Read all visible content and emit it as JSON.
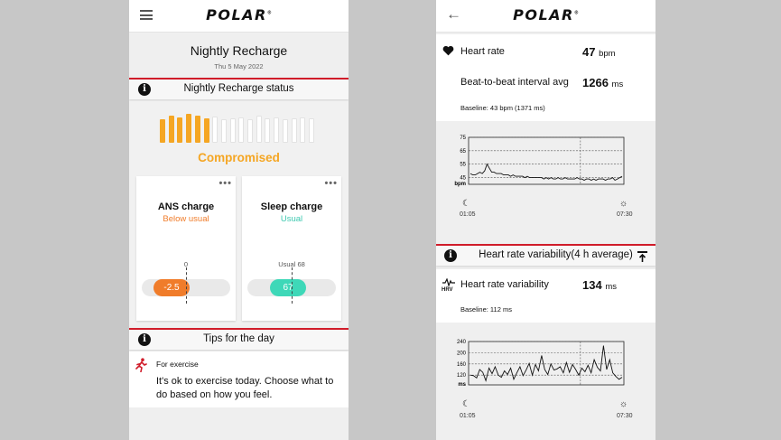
{
  "left": {
    "brand": "POLAR",
    "title": "Nightly Recharge",
    "date": "Thu 5 May 2022",
    "status_header": "Nightly Recharge status",
    "status_word": "Compromised",
    "status_level": 6,
    "status_total": 18,
    "ans": {
      "title": "ANS charge",
      "subtitle": "Below usual",
      "reference": "0",
      "value": "-2.5"
    },
    "sleep": {
      "title": "Sleep charge",
      "subtitle": "Usual",
      "reference": "Usual 68",
      "value": "67"
    },
    "tips_header": "Tips for the day",
    "tip_category": "For exercise",
    "tip_text": "It's ok to exercise today. Choose what to do based on how you feel."
  },
  "right": {
    "brand": "POLAR",
    "heart_rate": {
      "label": "Heart rate",
      "value": "47",
      "unit": "bpm"
    },
    "btb": {
      "label": "Beat-to-beat interval avg",
      "value": "1266",
      "unit": "ms"
    },
    "baseline_hr": "Baseline: 43 bpm (1371 ms)",
    "hrv_header": "Heart rate variability(4 h average)",
    "hrv_icon_label": "HRV",
    "hrv": {
      "label": "Heart rate variability",
      "value": "134",
      "unit": "ms"
    },
    "baseline_hrv": "Baseline: 112 ms"
  },
  "chart_data": [
    {
      "type": "line",
      "ylabel": "bpm",
      "yticks": [
        "75",
        "65",
        "55",
        "45"
      ],
      "ylim": [
        40,
        75
      ],
      "xlabels": [
        "01:05",
        "07:30"
      ],
      "values": [
        48,
        47,
        47,
        48,
        49,
        48,
        50,
        55,
        52,
        49,
        49,
        48,
        48,
        48,
        47,
        47,
        47,
        46,
        47,
        46,
        46,
        46,
        46,
        45,
        46,
        45,
        45,
        45,
        45,
        45,
        45,
        44,
        45,
        44,
        45,
        44,
        44,
        45,
        44,
        44,
        45,
        44,
        44,
        44,
        44,
        45,
        44,
        44,
        43,
        44,
        44,
        43,
        44,
        43,
        44,
        44,
        44,
        43,
        44,
        44,
        45,
        43,
        44,
        45,
        46
      ]
    },
    {
      "type": "line",
      "ylabel": "ms",
      "yticks": [
        "240",
        "200",
        "160",
        "120"
      ],
      "ylim": [
        85,
        240
      ],
      "xlabels": [
        "01:05",
        "07:30"
      ],
      "values": [
        120,
        118,
        110,
        140,
        130,
        100,
        145,
        125,
        150,
        120,
        112,
        135,
        122,
        145,
        105,
        128,
        150,
        118,
        138,
        162,
        120,
        158,
        135,
        190,
        140,
        122,
        160,
        138,
        142,
        150,
        128,
        165,
        130,
        158,
        140,
        120,
        145,
        132,
        155,
        128,
        175,
        148,
        135,
        225,
        140,
        175,
        128,
        115,
        105,
        112
      ]
    }
  ]
}
